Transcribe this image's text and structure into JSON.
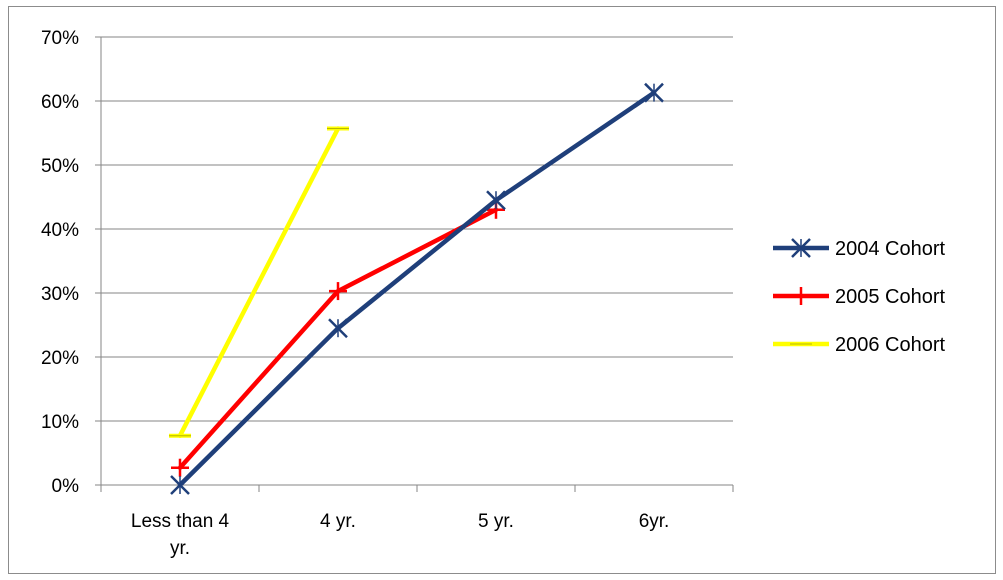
{
  "chart_data": {
    "type": "line",
    "categories": [
      "Less than 4 yr.",
      "4 yr.",
      "5 yr.",
      "6yr."
    ],
    "category_lines": [
      [
        "Less than 4",
        "yr."
      ],
      [
        "4 yr."
      ],
      [
        "5 yr."
      ],
      [
        "6yr."
      ]
    ],
    "ylim": [
      0,
      0.7
    ],
    "yticks": [
      0,
      0.1,
      0.2,
      0.3,
      0.4,
      0.5,
      0.6,
      0.7
    ],
    "ytick_labels": [
      "0%",
      "10%",
      "20%",
      "30%",
      "40%",
      "50%",
      "60%",
      "70%"
    ],
    "grid": true,
    "legend_position": "right",
    "series": [
      {
        "name": "2004 Cohort",
        "color": "#1f3f7a",
        "marker": "asterisk",
        "values": [
          0.0,
          0.245,
          0.445,
          0.613
        ]
      },
      {
        "name": "2005 Cohort",
        "color": "#ff0000",
        "marker": "plus",
        "values": [
          0.027,
          0.303,
          0.43,
          null
        ]
      },
      {
        "name": "2006 Cohort",
        "color": "#ffff00",
        "marker": "dash",
        "values": [
          0.077,
          0.557,
          null,
          null
        ]
      }
    ]
  }
}
